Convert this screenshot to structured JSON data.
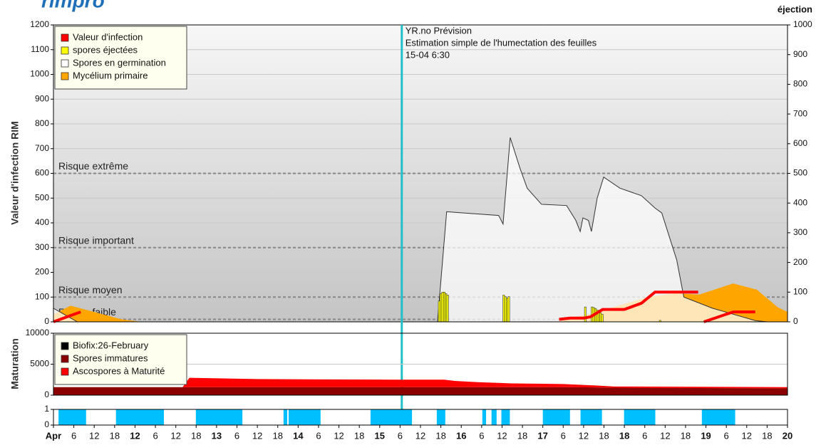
{
  "logo": "rimpro",
  "chart_data": [
    {
      "type": "area",
      "ylabel": "Valeur d'infection RIM",
      "y2label": "éjection",
      "xlim": [
        0,
        216
      ],
      "ylim": [
        0,
        1200
      ],
      "yticks": [
        0,
        100,
        200,
        300,
        400,
        500,
        600,
        700,
        800,
        900,
        1000,
        1100,
        1200
      ],
      "y2lim": [
        0,
        1000
      ],
      "y2ticks": [
        0,
        100,
        200,
        300,
        400,
        500,
        600,
        700,
        800,
        900,
        1000
      ],
      "grid": true,
      "legend": "upper left",
      "series": [
        {
          "name": "Valeur d'infection",
          "color": "#ff0000",
          "type": "line",
          "x": [
            0,
            4,
            8,
            null,
            148.8,
            152,
            156,
            158,
            161.6,
            168,
            173,
            177,
            189.7,
            null,
            191.4,
            200,
            206.5
          ],
          "values": [
            0,
            20,
            40,
            null,
            10,
            15,
            15,
            20,
            50,
            50,
            75,
            120,
            120,
            null,
            0,
            40,
            40
          ]
        },
        {
          "name": "spores éjectées",
          "color": "#ffff00",
          "type": "bar",
          "axis": "y2",
          "x": [
            113.5,
            114,
            114.5,
            115,
            115.5,
            116,
            132.5,
            133,
            133.5,
            134,
            156.5,
            158.5,
            159,
            159.5,
            160,
            160.5,
            161,
            161.5,
            178.5
          ],
          "values": [
            70,
            95,
            100,
            100,
            95,
            90,
            90,
            85,
            80,
            85,
            50,
            50,
            48,
            45,
            40,
            35,
            30,
            25,
            5
          ]
        },
        {
          "name": "Spores en germination",
          "color": "#ffffff",
          "type": "area",
          "x": [
            0,
            7,
            null,
            113,
            115.7,
            131,
            132.3,
            134.4,
            137.3,
            139.4,
            143.6,
            151,
            153.7,
            155,
            155.8,
            157.4,
            158.3,
            160,
            161.9,
            166.7,
            173,
            177,
            179,
            183.4,
            185.5,
            193.9,
            206.5,
            210
          ],
          "values": [
            55,
            0,
            null,
            0,
            445,
            430,
            395,
            745,
            620,
            540,
            475,
            470,
            410,
            365,
            420,
            410,
            365,
            500,
            585,
            540,
            510,
            460,
            440,
            250,
            100,
            55,
            5,
            0
          ]
        },
        {
          "name": "Mycélium primaire",
          "color": "#ffa500",
          "type": "area",
          "x": [
            0,
            5,
            12,
            20,
            26,
            null,
            148,
            160,
            175,
            183,
            190,
            200,
            207,
            213,
            216
          ],
          "values": [
            30,
            65,
            40,
            10,
            0,
            null,
            0,
            40,
            100,
            115,
            110,
            155,
            130,
            60,
            40
          ]
        }
      ],
      "risk_levels": [
        {
          "label": "Risque extrême",
          "value": 600
        },
        {
          "label": "Risque important",
          "value": 300
        },
        {
          "label": "Risque moyen",
          "value": 100
        },
        {
          "label": "Risque faible",
          "value": 10
        }
      ],
      "annotation": {
        "x": 102.5,
        "lines": [
          "YR.no Prévision",
          "Estimation simple de l'humectation des feuilles",
          "15-04 6:30"
        ]
      }
    },
    {
      "type": "area",
      "ylabel": "Maturation",
      "stacked": true,
      "xlim": [
        0,
        216
      ],
      "ylim": [
        0,
        10000
      ],
      "yticks": [
        0,
        5000,
        10000
      ],
      "grid": true,
      "legend": "upper left",
      "series": [
        {
          "name": "Biofix:26-February",
          "color": "#000000"
        },
        {
          "name": "Spores immatures",
          "color": "#8b0000",
          "x": [
            0,
            38,
            40,
            60,
            80,
            100,
            115,
            118,
            125,
            135,
            150,
            160,
            165,
            190,
            216
          ],
          "values": [
            1300,
            1300,
            1300,
            1300,
            1300,
            1300,
            1300,
            1300,
            1300,
            1300,
            1300,
            1250,
            1200,
            1150,
            1100
          ]
        },
        {
          "name": "Ascospores à Maturité",
          "color": "#ff0000",
          "x": [
            0,
            38,
            40,
            60,
            80,
            100,
            115,
            118,
            125,
            135,
            150,
            160,
            165,
            190,
            216
          ],
          "values": [
            0,
            0,
            1500,
            1300,
            1250,
            1200,
            1200,
            1000,
            800,
            600,
            500,
            300,
            200,
            200,
            200
          ]
        }
      ]
    },
    {
      "type": "bar",
      "xlim": [
        0,
        216
      ],
      "ylim": [
        0,
        1
      ],
      "yticks": [
        0,
        1
      ],
      "grid": false,
      "series": [
        {
          "color": "#00bfff",
          "starts": [
            1.5,
            18.4,
            41.9,
            67.7,
            69.2,
            93.3,
            112.8,
            126.2,
            128.9,
            131.8,
            144,
            155.1,
            167.9,
            190.8
          ],
          "ends": [
            9.6,
            32.5,
            55.6,
            68.8,
            78.6,
            105.5,
            115.3,
            127.3,
            130.4,
            134.3,
            152,
            161.4,
            177.1,
            200.6
          ],
          "values": [
            1,
            1,
            1,
            1,
            1,
            1,
            1,
            1,
            1,
            1,
            1,
            1,
            1,
            1
          ]
        },
        {
          "color": "#0000cd",
          "starts": [
            113.2,
            129.4,
            132.3,
            155.8,
            158.1,
            160.1,
            168.8,
            175
          ],
          "ends": [
            114.7,
            129.8,
            133.1,
            156.2,
            158.7,
            160.7,
            169.8,
            176.8
          ],
          "values": [
            1,
            1,
            1,
            1,
            1,
            1,
            1,
            1
          ]
        }
      ],
      "xticks": [
        {
          "value": 0,
          "label": "Apr"
        },
        {
          "value": 6,
          "label": "6"
        },
        {
          "value": 12,
          "label": "12"
        },
        {
          "value": 18,
          "label": "18"
        },
        {
          "value": 24,
          "label": "12"
        },
        {
          "value": 30,
          "label": "6"
        },
        {
          "value": 36,
          "label": "12"
        },
        {
          "value": 42,
          "label": "18"
        },
        {
          "value": 48,
          "label": "13"
        },
        {
          "value": 54,
          "label": "6"
        },
        {
          "value": 60,
          "label": "12"
        },
        {
          "value": 66,
          "label": "18"
        },
        {
          "value": 72,
          "label": "14"
        },
        {
          "value": 78,
          "label": "6"
        },
        {
          "value": 84,
          "label": "12"
        },
        {
          "value": 90,
          "label": "18"
        },
        {
          "value": 96,
          "label": "15"
        },
        {
          "value": 102,
          "label": "6"
        },
        {
          "value": 108,
          "label": "12"
        },
        {
          "value": 114,
          "label": "18"
        },
        {
          "value": 120,
          "label": "16"
        },
        {
          "value": 126,
          "label": "6"
        },
        {
          "value": 132,
          "label": "12"
        },
        {
          "value": 138,
          "label": "18"
        },
        {
          "value": 144,
          "label": "17"
        },
        {
          "value": 150,
          "label": "6"
        },
        {
          "value": 156,
          "label": "12"
        },
        {
          "value": 162,
          "label": "18"
        },
        {
          "value": 168,
          "label": "18"
        },
        {
          "value": 174,
          "label": "6"
        },
        {
          "value": 180,
          "label": "12"
        },
        {
          "value": 186,
          "label": "18"
        },
        {
          "value": 192,
          "label": "19"
        },
        {
          "value": 198,
          "label": "6"
        },
        {
          "value": 204,
          "label": "12"
        },
        {
          "value": 210,
          "label": "18"
        },
        {
          "value": 216,
          "label": "20"
        }
      ]
    }
  ]
}
